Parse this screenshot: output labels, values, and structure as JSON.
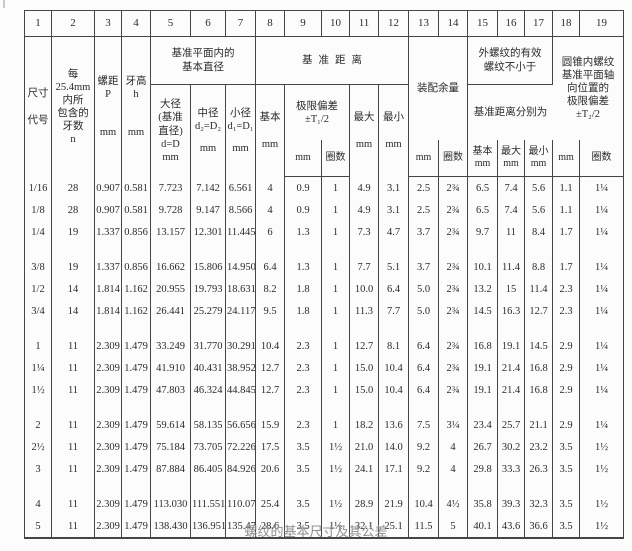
{
  "caption": "螺纹的基本尺寸及其公差",
  "table": {
    "column_numbers": [
      "1",
      "2",
      "3",
      "4",
      "5",
      "6",
      "7",
      "8",
      "9",
      "10",
      "11",
      "12",
      "13",
      "14",
      "15",
      "16",
      "17",
      "18",
      "19"
    ],
    "header": {
      "size_code": "尺寸\n\n代号",
      "threads_per_inch": "每\n25.4mm\n内所\n包含的\n牙数\nn",
      "pitch_label": "螺距\nP",
      "pitch_unit": "mm",
      "height_label": "牙高\nh",
      "height_unit": "mm",
      "basic_diameter_group": "基准平面内的\n基本直径",
      "major_label": "大径\n(基准\n直径)\nd=D",
      "major_unit": "mm",
      "mid_label": "中径\nd₂=D₂",
      "mid_unit": "mm",
      "minor_label": "小径\nd₁=D₁",
      "minor_unit": "mm",
      "gauge_group": "基准距离",
      "basic_label": "基本",
      "basic_unit": "mm",
      "dev_label": "极限偏差\n±T₁/2",
      "dev_unit_mm": "mm",
      "dev_unit_turns": "圈数",
      "max_label": "最大",
      "max_unit": "mm",
      "min_label": "最小",
      "min_unit": "mm",
      "assembly_label": "装配余量",
      "assembly_unit_mm": "mm",
      "assembly_unit_turns": "圈数",
      "external_group": "外螺纹的有效\n螺纹不小于",
      "external_sub": "基准距离分别为",
      "ext_basic": "基本\nmm",
      "ext_max": "最大\nmm",
      "ext_min": "最小\nmm",
      "taper_group": "圆锥内螺纹\n基准平面轴\n向位置的\n极限偏差\n±T₂/2",
      "taper_unit_mm": "mm",
      "taper_unit_turns": "圈数"
    },
    "rows": [
      [
        "1/16",
        "28",
        "0.907",
        "0.581",
        "7.723",
        "7.142",
        "6.561",
        "4",
        "0.9",
        "1",
        "4.9",
        "3.1",
        "2.5",
        "2¾",
        "6.5",
        "7.4",
        "5.6",
        "1.1",
        "1¼"
      ],
      [
        "1/8",
        "28",
        "0.907",
        "0.581",
        "9.728",
        "9.147",
        "8.566",
        "4",
        "0.9",
        "1",
        "4.9",
        "3.1",
        "2.5",
        "2¾",
        "6.5",
        "7.4",
        "5.6",
        "1.1",
        "1¼"
      ],
      [
        "1/4",
        "19",
        "1.337",
        "0.856",
        "13.157",
        "12.301",
        "11.445",
        "6",
        "1.3",
        "1",
        "7.3",
        "4.7",
        "3.7",
        "2¾",
        "9.7",
        "11",
        "8.4",
        "1.7",
        "1¼"
      ],
      [
        "3/8",
        "19",
        "1.337",
        "0.856",
        "16.662",
        "15.806",
        "14.950",
        "6.4",
        "1.3",
        "1",
        "7.7",
        "5.1",
        "3.7",
        "2¾",
        "10.1",
        "11.4",
        "8.8",
        "1.7",
        "1¼"
      ],
      [
        "1/2",
        "14",
        "1.814",
        "1.162",
        "20.955",
        "19.793",
        "18.631",
        "8.2",
        "1.8",
        "1",
        "10.0",
        "6.4",
        "5.0",
        "2¾",
        "13.2",
        "15",
        "11.4",
        "2.3",
        "1¼"
      ],
      [
        "3/4",
        "14",
        "1.814",
        "1.162",
        "26.441",
        "25.279",
        "24.117",
        "9.5",
        "1.8",
        "1",
        "11.3",
        "7.7",
        "5.0",
        "2¾",
        "14.5",
        "16.3",
        "12.7",
        "2.3",
        "1¼"
      ],
      [
        "1",
        "11",
        "2.309",
        "1.479",
        "33.249",
        "31.770",
        "30.291",
        "10.4",
        "2.3",
        "1",
        "12.7",
        "8.1",
        "6.4",
        "2¾",
        "16.8",
        "19.1",
        "14.5",
        "2.9",
        "1¼"
      ],
      [
        "1¼",
        "11",
        "2.309",
        "1.479",
        "41.910",
        "40.431",
        "38.952",
        "12.7",
        "2.3",
        "1",
        "15.0",
        "10.4",
        "6.4",
        "2¾",
        "19.1",
        "21.4",
        "16.8",
        "2.9",
        "1¼"
      ],
      [
        "1½",
        "11",
        "2.309",
        "1.479",
        "47.803",
        "46.324",
        "44.845",
        "12.7",
        "2.3",
        "1",
        "15.0",
        "10.4",
        "6.4",
        "2¾",
        "19.1",
        "21.4",
        "16.8",
        "2.9",
        "1¼"
      ],
      [
        "2",
        "11",
        "2.309",
        "1.479",
        "59.614",
        "58.135",
        "56.656",
        "15.9",
        "2.3",
        "1",
        "18.2",
        "13.6",
        "7.5",
        "3¼",
        "23.4",
        "25.7",
        "21.1",
        "2.9",
        "1¼"
      ],
      [
        "2½",
        "11",
        "2.309",
        "1.479",
        "75.184",
        "73.705",
        "72.226",
        "17.5",
        "3.5",
        "1½",
        "21.0",
        "14.0",
        "9.2",
        "4",
        "26.7",
        "30.2",
        "23.2",
        "3.5",
        "1½"
      ],
      [
        "3",
        "11",
        "2.309",
        "1.479",
        "87.884",
        "86.405",
        "84.926",
        "20.6",
        "3.5",
        "1½",
        "24.1",
        "17.1",
        "9.2",
        "4",
        "29.8",
        "33.3",
        "26.3",
        "3.5",
        "1½"
      ],
      [
        "4",
        "11",
        "2.309",
        "1.479",
        "113.030",
        "111.551",
        "110.072",
        "25.4",
        "3.5",
        "1½",
        "28.9",
        "21.9",
        "10.4",
        "4½",
        "35.8",
        "39.3",
        "32.3",
        "3.5",
        "1½"
      ],
      [
        "5",
        "11",
        "2.309",
        "1.479",
        "138.430",
        "136.951",
        "135.472",
        "28.6",
        "3.5",
        "1½",
        "32.1",
        "25.1",
        "11.5",
        "5",
        "40.1",
        "43.6",
        "36.6",
        "3.5",
        "1½"
      ]
    ],
    "separator_after": [
      2,
      5,
      8,
      11
    ]
  }
}
